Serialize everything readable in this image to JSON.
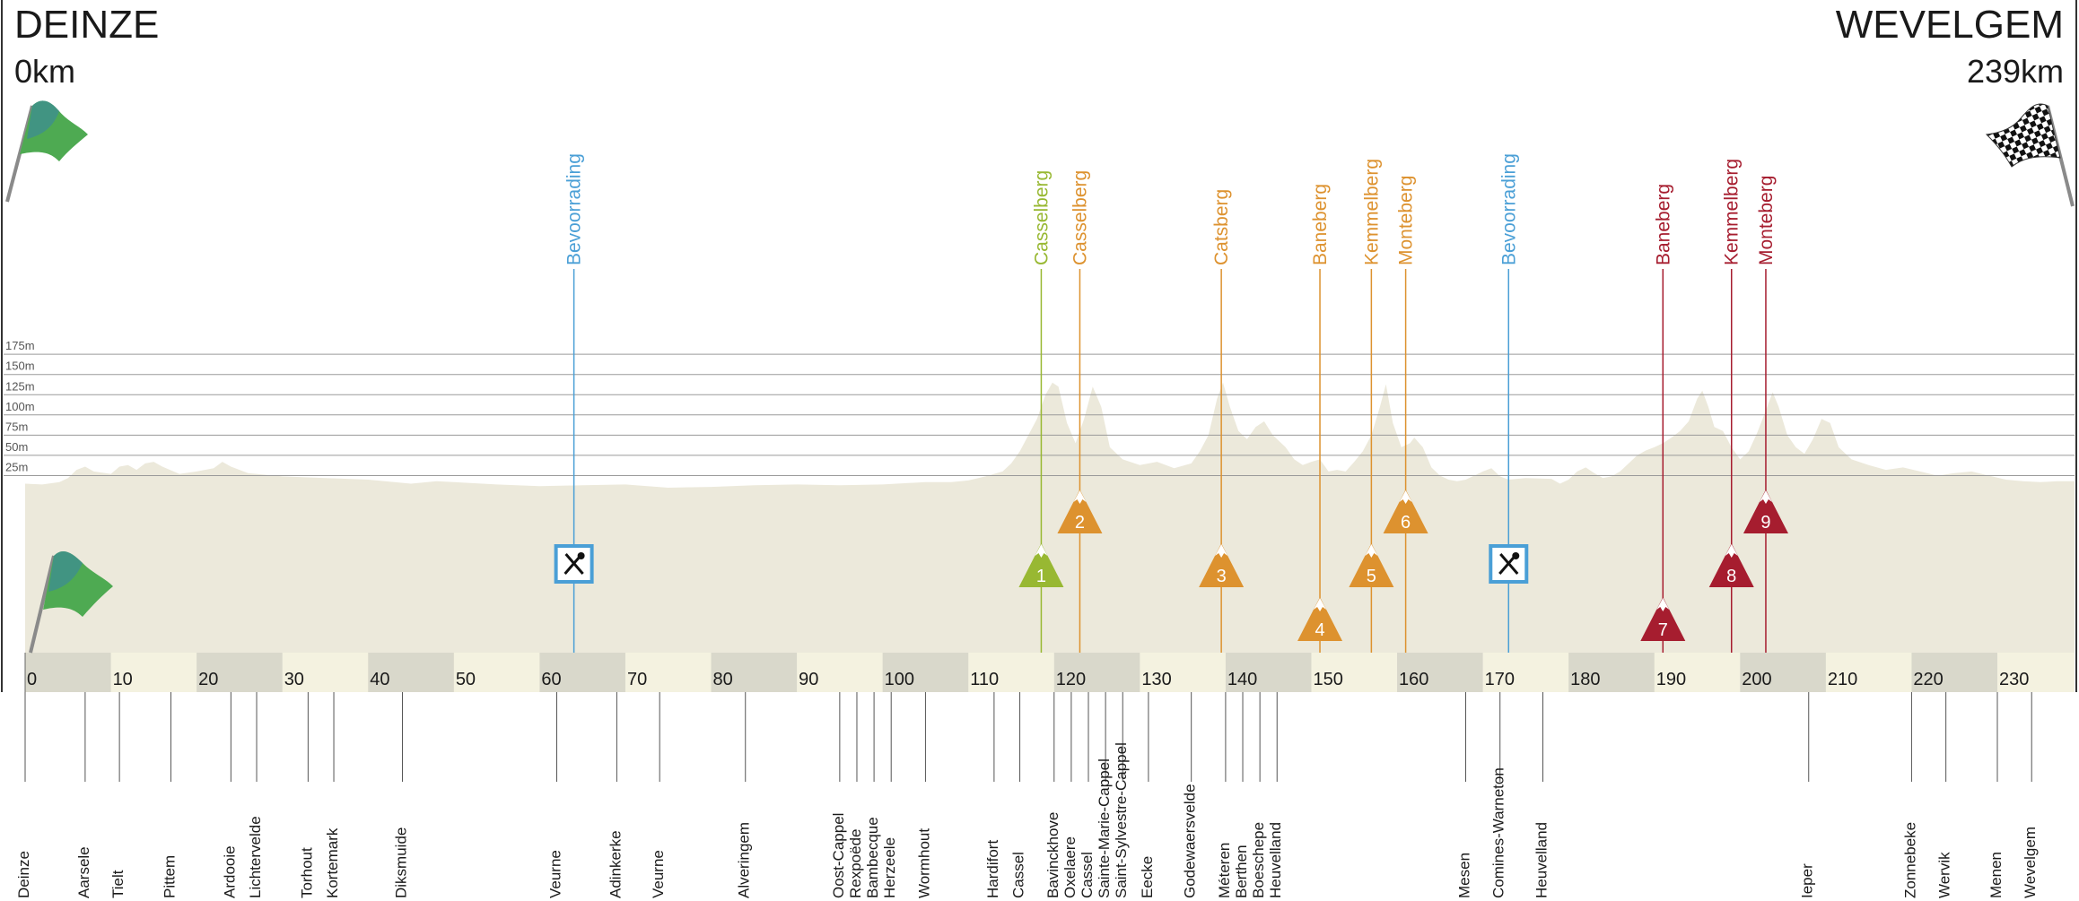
{
  "start": {
    "city": "DEINZE",
    "km": "0km",
    "flag_icon": "green-start-flag-icon"
  },
  "finish": {
    "city": "WEVELGEM",
    "km": "239km",
    "flag_icon": "checkered-finish-flag-icon"
  },
  "colors": {
    "profile": "#ece9db",
    "strip_light": "#f4f2e0",
    "strip_dark": "#d9d8cb",
    "grid": "#9a9a9a",
    "feed": "#4a9fd6",
    "climb_green": "#98b832",
    "climb_orange": "#dd922f",
    "climb_red": "#a61d2f",
    "text": "#1a1a1a"
  },
  "chart_data": {
    "type": "area",
    "x_unit": "km",
    "xlim": [
      0,
      239
    ],
    "y_ticks": [
      "25m",
      "50m",
      "75m",
      "100m",
      "125m",
      "150m",
      "175m"
    ],
    "y_values": [
      25,
      50,
      75,
      100,
      125,
      150,
      175
    ],
    "x_ticks": [
      "0",
      "10",
      "20",
      "30",
      "40",
      "50",
      "60",
      "70",
      "80",
      "90",
      "100",
      "110",
      "120",
      "130",
      "140",
      "150",
      "160",
      "170",
      "180",
      "190",
      "200",
      "210",
      "220",
      "230"
    ],
    "x_tick_values": [
      0,
      10,
      20,
      30,
      40,
      50,
      60,
      70,
      80,
      90,
      100,
      110,
      120,
      130,
      140,
      150,
      160,
      170,
      180,
      190,
      200,
      210,
      220,
      230
    ],
    "grid": true,
    "profile_points": [
      [
        0,
        15
      ],
      [
        2,
        14
      ],
      [
        4,
        17
      ],
      [
        5,
        22
      ],
      [
        6,
        32
      ],
      [
        7,
        36
      ],
      [
        8,
        30
      ],
      [
        10,
        27
      ],
      [
        11,
        36
      ],
      [
        12,
        38
      ],
      [
        13,
        32
      ],
      [
        14,
        40
      ],
      [
        15,
        42
      ],
      [
        16,
        36
      ],
      [
        18,
        27
      ],
      [
        20,
        30
      ],
      [
        22,
        34
      ],
      [
        23,
        42
      ],
      [
        24,
        36
      ],
      [
        26,
        28
      ],
      [
        28,
        26
      ],
      [
        30,
        24
      ],
      [
        35,
        22
      ],
      [
        40,
        20
      ],
      [
        45,
        15
      ],
      [
        48,
        18
      ],
      [
        50,
        17
      ],
      [
        55,
        14
      ],
      [
        60,
        12
      ],
      [
        65,
        13
      ],
      [
        70,
        14
      ],
      [
        75,
        10
      ],
      [
        80,
        11
      ],
      [
        85,
        13
      ],
      [
        90,
        14
      ],
      [
        95,
        13
      ],
      [
        100,
        14
      ],
      [
        105,
        17
      ],
      [
        108,
        17
      ],
      [
        110,
        19
      ],
      [
        112,
        24
      ],
      [
        114,
        30
      ],
      [
        115,
        40
      ],
      [
        116,
        55
      ],
      [
        117,
        75
      ],
      [
        118,
        95
      ],
      [
        119,
        125
      ],
      [
        119.8,
        140
      ],
      [
        120.5,
        135
      ],
      [
        121.5,
        90
      ],
      [
        122.5,
        65
      ],
      [
        123.5,
        95
      ],
      [
        124.5,
        135
      ],
      [
        125.5,
        110
      ],
      [
        126.5,
        60
      ],
      [
        128,
        45
      ],
      [
        130,
        38
      ],
      [
        132,
        42
      ],
      [
        134,
        34
      ],
      [
        136,
        40
      ],
      [
        137,
        55
      ],
      [
        138,
        75
      ],
      [
        139,
        120
      ],
      [
        139.7,
        140
      ],
      [
        140.5,
        110
      ],
      [
        141.5,
        80
      ],
      [
        142.5,
        70
      ],
      [
        143.5,
        85
      ],
      [
        144.5,
        92
      ],
      [
        145.5,
        75
      ],
      [
        147,
        60
      ],
      [
        148,
        45
      ],
      [
        149,
        38
      ],
      [
        150,
        42
      ],
      [
        151,
        45
      ],
      [
        152,
        30
      ],
      [
        153,
        32
      ],
      [
        154,
        30
      ],
      [
        155,
        42
      ],
      [
        156,
        55
      ],
      [
        157,
        75
      ],
      [
        158,
        110
      ],
      [
        158.7,
        138
      ],
      [
        159.5,
        90
      ],
      [
        160.5,
        60
      ],
      [
        161.5,
        65
      ],
      [
        162,
        72
      ],
      [
        163,
        60
      ],
      [
        164,
        35
      ],
      [
        165,
        25
      ],
      [
        166,
        20
      ],
      [
        167,
        18
      ],
      [
        168,
        20
      ],
      [
        169,
        25
      ],
      [
        170,
        30
      ],
      [
        171,
        34
      ],
      [
        172,
        24
      ],
      [
        173,
        20
      ],
      [
        175,
        22
      ],
      [
        178,
        21
      ],
      [
        179,
        15
      ],
      [
        180,
        20
      ],
      [
        181,
        30
      ],
      [
        182,
        35
      ],
      [
        183,
        28
      ],
      [
        184,
        22
      ],
      [
        185,
        24
      ],
      [
        186,
        30
      ],
      [
        187,
        40
      ],
      [
        188,
        50
      ],
      [
        189,
        56
      ],
      [
        190,
        60
      ],
      [
        191,
        65
      ],
      [
        192,
        72
      ],
      [
        193,
        80
      ],
      [
        194,
        92
      ],
      [
        195,
        120
      ],
      [
        195.6,
        130
      ],
      [
        196.3,
        110
      ],
      [
        197,
        85
      ],
      [
        198,
        80
      ],
      [
        199,
        60
      ],
      [
        200,
        45
      ],
      [
        201,
        55
      ],
      [
        202,
        78
      ],
      [
        202.8,
        100
      ],
      [
        203.8,
        128
      ],
      [
        204.5,
        110
      ],
      [
        205.5,
        75
      ],
      [
        206.5,
        60
      ],
      [
        207.5,
        52
      ],
      [
        208.5,
        70
      ],
      [
        209.5,
        95
      ],
      [
        210.5,
        90
      ],
      [
        211.5,
        60
      ],
      [
        213,
        45
      ],
      [
        215,
        38
      ],
      [
        217,
        32
      ],
      [
        219,
        35
      ],
      [
        221,
        30
      ],
      [
        223,
        25
      ],
      [
        225,
        28
      ],
      [
        227,
        30
      ],
      [
        229,
        25
      ],
      [
        231,
        20
      ],
      [
        233,
        18
      ],
      [
        235,
        17
      ],
      [
        237,
        18
      ],
      [
        239,
        18
      ]
    ],
    "climbs": [
      {
        "num": "1",
        "name": "Casselberg",
        "km": 118.5,
        "color": "green",
        "tier": "low"
      },
      {
        "num": "2",
        "name": "Casselberg",
        "km": 123,
        "color": "orange",
        "tier": "mid"
      },
      {
        "num": "3",
        "name": "Catsberg",
        "km": 139.5,
        "color": "orange",
        "tier": "low"
      },
      {
        "num": "4",
        "name": "Baneberg",
        "km": 151,
        "color": "orange",
        "tier": "bottom"
      },
      {
        "num": "5",
        "name": "Kemmelberg",
        "km": 157,
        "color": "orange",
        "tier": "low"
      },
      {
        "num": "6",
        "name": "Monteberg",
        "km": 161,
        "color": "orange",
        "tier": "mid"
      },
      {
        "num": "7",
        "name": "Baneberg",
        "km": 191,
        "color": "red",
        "tier": "bottom"
      },
      {
        "num": "8",
        "name": "Kemmelberg",
        "km": 199,
        "color": "red",
        "tier": "low"
      },
      {
        "num": "9",
        "name": "Monteberg",
        "km": 203,
        "color": "red",
        "tier": "mid"
      }
    ],
    "feed_zones": [
      {
        "name": "Bevoorrading",
        "km": 64,
        "icon": "fork-knife-icon"
      },
      {
        "name": "Bevoorrading",
        "km": 173,
        "icon": "fork-knife-icon"
      }
    ],
    "places": [
      {
        "name": "Deinze",
        "km": 0
      },
      {
        "name": "Aarsele",
        "km": 7
      },
      {
        "name": "Tielt",
        "km": 11
      },
      {
        "name": "Pittem",
        "km": 17
      },
      {
        "name": "Ardooie",
        "km": 24
      },
      {
        "name": "Lichtervelde",
        "km": 27
      },
      {
        "name": "Torhout",
        "km": 33
      },
      {
        "name": "Kortemark",
        "km": 36
      },
      {
        "name": "Diksmuide",
        "km": 44
      },
      {
        "name": "Veurne",
        "km": 62
      },
      {
        "name": "Adinkerke",
        "km": 69
      },
      {
        "name": "Veurne",
        "km": 74
      },
      {
        "name": "Alveringem",
        "km": 84
      },
      {
        "name": "Oost-Cappel",
        "km": 95
      },
      {
        "name": "Rexpoëde",
        "km": 97
      },
      {
        "name": "Bambecque",
        "km": 99
      },
      {
        "name": "Herzeele",
        "km": 101
      },
      {
        "name": "Wormhout",
        "km": 105
      },
      {
        "name": "Hardifort",
        "km": 113
      },
      {
        "name": "Cassel",
        "km": 116
      },
      {
        "name": "Bavinckhove",
        "km": 120
      },
      {
        "name": "Oxelaere",
        "km": 122
      },
      {
        "name": "Cassel",
        "km": 124
      },
      {
        "name": "Sainte-Marie-Cappel",
        "km": 126
      },
      {
        "name": "Saint-Sylvestre-Cappel",
        "km": 128
      },
      {
        "name": "Eecke",
        "km": 131
      },
      {
        "name": "Godewaersvelde",
        "km": 136
      },
      {
        "name": "Méteren",
        "km": 140
      },
      {
        "name": "Berthen",
        "km": 142
      },
      {
        "name": "Boeschepe",
        "km": 144
      },
      {
        "name": "Heuvelland",
        "km": 146
      },
      {
        "name": "Mesen",
        "km": 168
      },
      {
        "name": "Comines-Warneton",
        "km": 172
      },
      {
        "name": "Heuvelland",
        "km": 177
      },
      {
        "name": "Ieper",
        "km": 208
      },
      {
        "name": "Zonnebeke",
        "km": 220
      },
      {
        "name": "Wervik",
        "km": 224
      },
      {
        "name": "Menen",
        "km": 230
      },
      {
        "name": "Wevelgem",
        "km": 234
      }
    ]
  }
}
